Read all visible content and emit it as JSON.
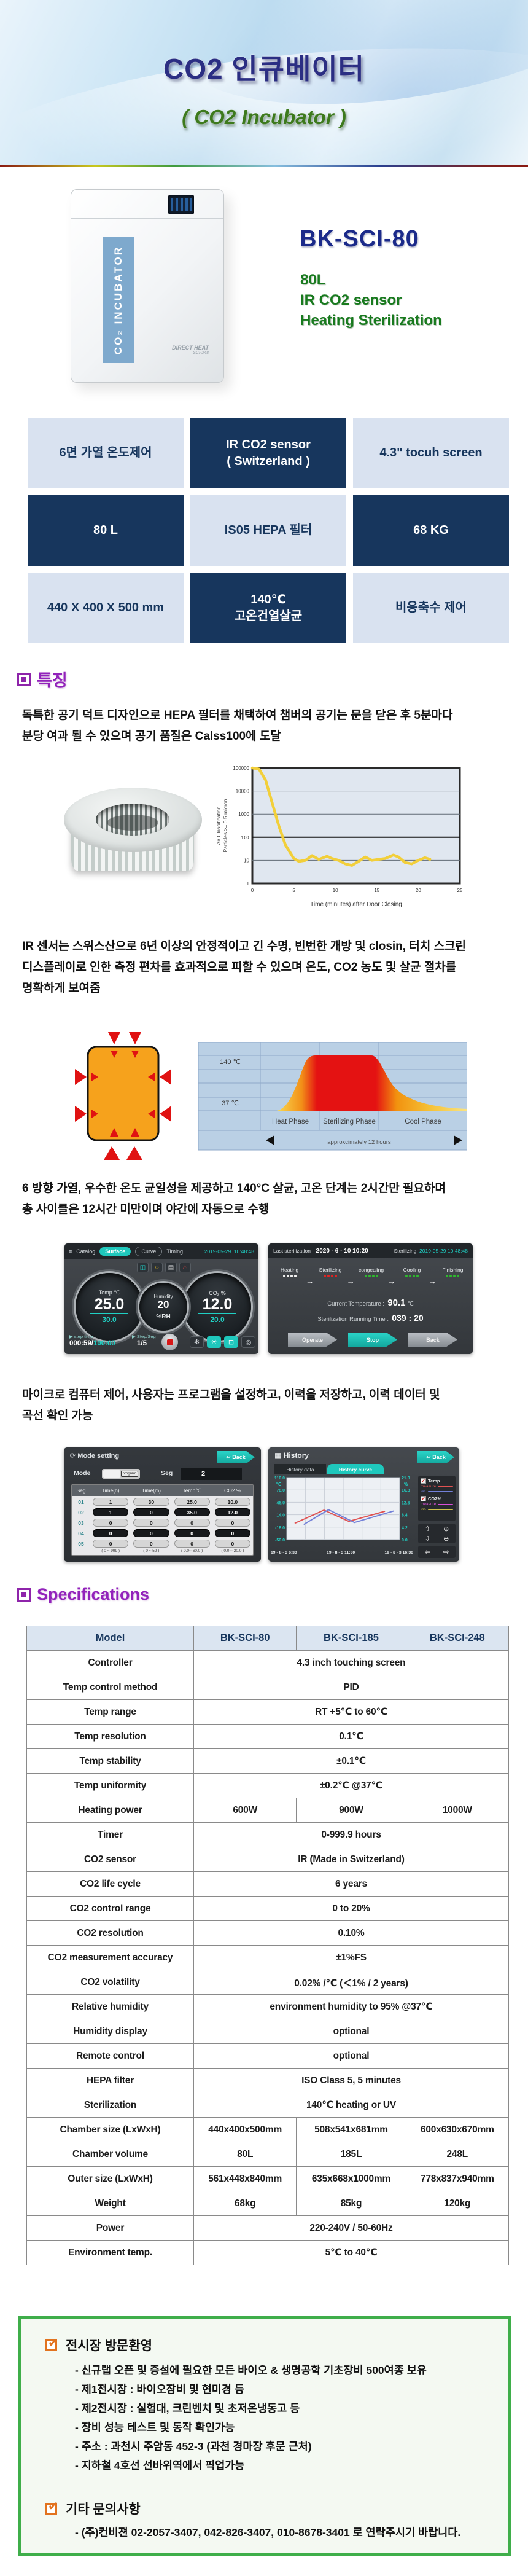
{
  "banner": {
    "title": "CO2 인큐베이터",
    "subtitle": "( CO2 Incubator )"
  },
  "product": {
    "model": "BK-SCI-80",
    "highlights": [
      "80L",
      "IR CO2 sensor",
      "Heating Sterilization"
    ],
    "cabinet_label": "CO₂ INCUBATOR",
    "cabinet_note": "DIRECT HEAT",
    "cabinet_model": "SCI-248"
  },
  "highlight_grid": [
    {
      "text": "6면 가열 온도제어",
      "variant": "light"
    },
    {
      "text": "IR CO2 sensor\n( Switzerland )",
      "variant": "dark"
    },
    {
      "text": "4.3\" tocuh screen",
      "variant": "light"
    },
    {
      "text": "80 L",
      "variant": "dark"
    },
    {
      "text": "IS05 HEPA 필터",
      "variant": "light"
    },
    {
      "text": "68 KG",
      "variant": "dark"
    },
    {
      "text": "440 X 400 X 500 mm",
      "variant": "light"
    },
    {
      "text": "140℃\n고온건열살균",
      "variant": "dark"
    },
    {
      "text": "비응축수 제어",
      "variant": "light"
    }
  ],
  "features": {
    "heading": "특징",
    "p1": "독특한 공기 덕트 디자인으로 HEPA 필터를 채택하여 챔버의 공기는 문을 닫은 후 5분마다\n분당 여과 될 수 있으며 공기 품질은 Calss100에 도달",
    "p2": "IR 센서는 스위스산으로 6년 이상의 안정적이고 긴 수명, 빈번한 개방 및 closin, 터치 스크린\n디스플레이로 인한 측정 편차를 효과적으로 피할 수 있으며 온도, CO2 농도 및 살균 절차를\n명확하게 보여줌",
    "p3": "6 방향 가열, 우수한 온도 균일성을 제공하고 140°C 살균, 고온 단계는 2시간만 필요하며\n총 사이클은 12시간 미만이며 야간에 자동으로 수행",
    "p4": "마이크로 컴퓨터 제어, 사용자는 프로그램을 설정하고, 이력을 저장하고, 이력 데이터 및\n곡선 확인 가능"
  },
  "chart_data": [
    {
      "id": "air_filtration",
      "type": "line",
      "xlabel": "Time (minutes) after Door Closing",
      "ylabel": "Air Classification\nParticles >= 0.5 micron",
      "x_ticks": [
        0,
        5,
        10,
        15,
        20,
        25
      ],
      "y_ticks": [
        1,
        10,
        100,
        1000,
        10000,
        100000
      ],
      "y_scale": "log",
      "xlim": [
        0,
        25
      ],
      "line_color": "#f2cf3a",
      "points": [
        [
          0,
          100000
        ],
        [
          0.8,
          90000
        ],
        [
          1.6,
          30000
        ],
        [
          2.4,
          3000
        ],
        [
          3.2,
          300
        ],
        [
          4,
          45
        ],
        [
          5,
          12
        ],
        [
          5.6,
          9
        ],
        [
          6.4,
          10
        ],
        [
          7.2,
          16
        ],
        [
          8,
          11
        ],
        [
          9,
          15
        ],
        [
          9.6,
          12
        ],
        [
          10.4,
          10
        ],
        [
          11.2,
          7
        ],
        [
          12,
          6
        ],
        [
          12.8,
          9
        ],
        [
          13.6,
          14
        ],
        [
          14.4,
          10
        ],
        [
          15.2,
          11
        ],
        [
          16,
          12
        ],
        [
          17,
          17
        ],
        [
          17.6,
          14
        ],
        [
          18.4,
          8
        ],
        [
          19.2,
          7
        ],
        [
          20,
          10
        ],
        [
          20.8,
          13
        ],
        [
          21.4,
          11
        ]
      ]
    },
    {
      "id": "sterilization_cycle",
      "type": "area",
      "y_labels": [
        "140 ℃",
        "37 ℃"
      ],
      "phases": [
        "Heat Phase",
        "Sterilizing Phase",
        "Cool Phase"
      ],
      "note": "approxcimately 12 hours"
    },
    {
      "id": "history_curve",
      "type": "line",
      "left_ticks": [
        "110.0",
        "78.0",
        "46.0",
        "14.0",
        "-18.0",
        "-50.0"
      ],
      "left_unit": "℃",
      "right_ticks": [
        "21.0",
        "16.8",
        "12.6",
        "8.4",
        "4.2",
        "0.0"
      ],
      "right_unit": "%",
      "x_labels": [
        "19 - 8 - 3   6:30",
        "19 - 8 - 3   11:30",
        "19 - 8 - 3   16:30"
      ],
      "ylim": [
        -50,
        110
      ],
      "series": [
        {
          "name": "temp measure",
          "color": "#e05252",
          "points": [
            [
              0.07,
              -8
            ],
            [
              0.33,
              26
            ],
            [
              0.55,
              -3
            ],
            [
              0.87,
              23
            ]
          ]
        },
        {
          "name": "temp set",
          "color": "#7280d8",
          "points": [
            [
              0.15,
              -11
            ],
            [
              0.37,
              27
            ],
            [
              0.6,
              -6
            ],
            [
              0.95,
              24
            ]
          ]
        }
      ]
    }
  ],
  "screen_surface": {
    "catalog": "Catalog",
    "surface": "Surface",
    "curve": "Curve",
    "timing": "Timing",
    "datetime": "2019-05-29",
    "time": "10:48:48",
    "temp_label": "Temp ℃",
    "temp_value": "25.0",
    "temp_set": "30.0",
    "hum_label": "Humidity",
    "hum_value": "20",
    "hum_unit": "%RH",
    "co2_label": "CO₂ %",
    "co2_value": "12.0",
    "co2_set": "20.0",
    "step_time_label": "▶ step time",
    "step_time_cur": "000:59/",
    "step_time_total": "100:00",
    "step_seg_label": "▶ Step/Seg",
    "step_seg_value": "1/5"
  },
  "screen_sterilize": {
    "last_label": "Last sterilization :",
    "last_value": "2020 -  6 - 10  10:20",
    "status": "Sterilizing",
    "datetime": "2019-05-29",
    "time": "10:48:48",
    "phases": [
      {
        "name": "Heating",
        "color": "#f2f2f2"
      },
      {
        "name": "Sterilizing",
        "color": "#e42222"
      },
      {
        "name": "congealing",
        "color": "#2eb82e"
      },
      {
        "name": "Cooling",
        "color": "#2eb82e"
      },
      {
        "name": "Finishing",
        "color": "#2eb82e"
      }
    ],
    "cur_label": "Current Temperature :",
    "cur_value": "90.1",
    "cur_unit": "℃",
    "run_label": "Sterilization Running Time :",
    "run_value": "039 : 20",
    "btn_operate": "Operate",
    "btn_stop": "Stop",
    "btn_back": "Back"
  },
  "screen_mode": {
    "title": "Mode setting",
    "back": "Back",
    "mode_label": "Mode",
    "mode_value": "program",
    "seg_label": "Seg",
    "seg_value": "2",
    "columns": [
      "Seg",
      "Time(h)",
      "Time(m)",
      "Temp℃",
      "CO2 %"
    ],
    "rows": [
      {
        "no": "01",
        "dark": false,
        "values": [
          "1",
          "30",
          "25.0",
          "10.0"
        ]
      },
      {
        "no": "02",
        "dark": true,
        "values": [
          "1",
          "0",
          "35.0",
          "12.0"
        ]
      },
      {
        "no": "03",
        "dark": false,
        "values": [
          "0",
          "0",
          "0",
          "0"
        ]
      },
      {
        "no": "04",
        "dark": true,
        "values": [
          "0",
          "0",
          "0",
          "0"
        ]
      },
      {
        "no": "05",
        "dark": false,
        "values": [
          "0",
          "0",
          "0",
          "0"
        ]
      }
    ],
    "ranges": [
      "( 0 ~ 999 )",
      "( 0 ~ 59 )",
      "( 0.0~  60.0 )",
      "( 0.0 ~ 20.0 )"
    ]
  },
  "screen_history": {
    "title": "History",
    "back": "Back",
    "tab_data": "History data",
    "tab_curve": "History curve",
    "legend_temp": "Temp",
    "legend_co2": "CO2%",
    "legend_measure": "measure",
    "legend_set": "set",
    "legend_colors": {
      "temp_measure": "#e05252",
      "temp_set": "#7280d8",
      "co2_measure": "#d84fd8",
      "co2_set": "#cfc24a"
    }
  },
  "specs": {
    "heading": "Specifications",
    "columns": [
      "Model",
      "BK-SCI-80",
      "BK-SCI-185",
      "BK-SCI-248"
    ],
    "rows": [
      {
        "label": "Controller",
        "values": [
          "4.3 inch touching screen"
        ]
      },
      {
        "label": "Temp control method",
        "values": [
          "PID"
        ]
      },
      {
        "label": "Temp range",
        "values": [
          "RT +5℃ to 60℃"
        ]
      },
      {
        "label": "Temp resolution",
        "values": [
          "0.1℃"
        ]
      },
      {
        "label": "Temp stability",
        "values": [
          "±0.1℃"
        ]
      },
      {
        "label": "Temp uniformity",
        "values": [
          "±0.2℃ @37℃"
        ]
      },
      {
        "label": "Heating power",
        "values": [
          "600W",
          "900W",
          "1000W"
        ]
      },
      {
        "label": "Timer",
        "values": [
          "0-999.9 hours"
        ]
      },
      {
        "label": "CO2 sensor",
        "values": [
          "IR (Made in Switzerland)"
        ]
      },
      {
        "label": "CO2 life cycle",
        "values": [
          "6 years"
        ]
      },
      {
        "label": "CO2 control range",
        "values": [
          "0 to 20%"
        ]
      },
      {
        "label": "CO2 resolution",
        "values": [
          "0.10%"
        ]
      },
      {
        "label": "CO2 measurement accuracy",
        "values": [
          "±1%FS"
        ]
      },
      {
        "label": "CO2 volatility",
        "values": [
          "0.02% /℃ (＜1% / 2 years)"
        ]
      },
      {
        "label": "Relative humidity",
        "values": [
          "environment humidity to 95% @37℃"
        ]
      },
      {
        "label": "Humidity display",
        "values": [
          "optional"
        ]
      },
      {
        "label": "Remote control",
        "values": [
          "optional"
        ]
      },
      {
        "label": "HEPA filter",
        "values": [
          "ISO Class 5, 5 minutes"
        ]
      },
      {
        "label": "Sterilization",
        "values": [
          "140℃ heating or UV"
        ]
      },
      {
        "label": "Chamber size (LxWxH)",
        "values": [
          "440x400x500mm",
          "508x541x681mm",
          "600x630x670mm"
        ]
      },
      {
        "label": "Chamber volume",
        "values": [
          "80L",
          "185L",
          "248L"
        ]
      },
      {
        "label": "Outer size (LxWxH)",
        "values": [
          "561x448x840mm",
          "635x668x1000mm",
          "778x837x940mm"
        ]
      },
      {
        "label": "Weight",
        "values": [
          "68kg",
          "85kg",
          "120kg"
        ]
      },
      {
        "label": "Power",
        "values": [
          "220-240V / 50-60Hz"
        ]
      },
      {
        "label": "Environment temp.",
        "values": [
          "5℃ to 40℃"
        ]
      }
    ]
  },
  "visit": {
    "heading1": "전시장 방문환영",
    "items1": [
      "- 신규랩 오픈 및 증설에 필요한 모든 바이오 & 생명공학 기초장비 500여종 보유",
      "- 제1전시장 : 바이오장비 및 현미경 등",
      "- 제2전시장 : 실험대, 크린벤치 및 초저온냉동고 등",
      "- 장비 성능 테스트 및 동작 확인가능",
      "- 주소 : 과천시 주암동 452-3 (과천 경마장 후문 근처)",
      "- 지하철 4호선 선바위역에서 픽업가능"
    ],
    "heading2": "기타 문의사항",
    "items2": [
      "- (주)컨비젼 02-2057-3407, 042-826-3407, 010-8678-3401 로 연락주시기 바랍니다."
    ]
  },
  "icons": {
    "menu": "≡",
    "home": "⌂",
    "door": "◫",
    "sun": "☼",
    "doc": "▤",
    "heat": "♨",
    "fan": "✻",
    "bulb": "☀",
    "lock": "⊡",
    "bell": "◎",
    "undo": "↩",
    "grid": "▦",
    "gear": "⟳",
    "check": "✔",
    "zoom_in": "⊕",
    "zoom_out": "⊖",
    "up": "⇧",
    "down": "⇩",
    "left": "⇦",
    "right": "⇨"
  }
}
